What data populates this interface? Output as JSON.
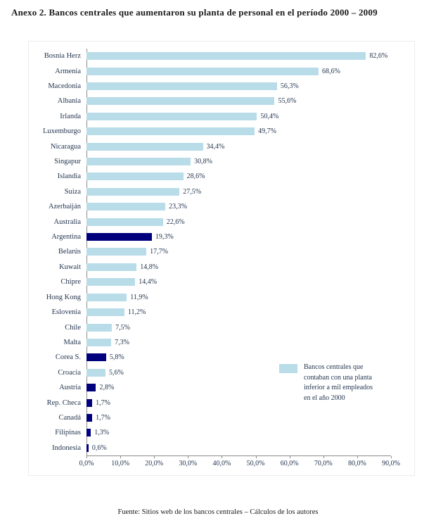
{
  "page": {
    "title": "Anexo 2. Bancos centrales que aumentaron su planta de personal en el período  2000 – 2009",
    "footer": "Fuente: Sitios web de los bancos centrales – Cálculos de los autores"
  },
  "legend": {
    "label": "Bancos centrales que contaban con una planta inferior a mil empleados en el año 2000"
  },
  "colors": {
    "light_bar": "#b9dce9",
    "dark_bar": "#00007d",
    "chart_text": "#24364f",
    "axis": "#8c8c8c"
  },
  "chart_data": {
    "type": "bar",
    "orientation": "horizontal",
    "title": "Anexo 2. Bancos centrales que aumentaron su planta de personal en el período 2000 – 2009",
    "categories": [
      "Bosnia Herz",
      "Armenia",
      "Macedonia",
      "Albania",
      "Irlanda",
      "Luxemburgo",
      "Nicaragua",
      "Singapur",
      "Islandia",
      "Suiza",
      "Azerbaiján",
      "Australia",
      "Argentina",
      "Belarús",
      "Kuwait",
      "Chipre",
      "Hong Kong",
      "Eslovenia",
      "Chile",
      "Malta",
      "Corea S.",
      "Croacia",
      "Austria",
      "Rep. Checa",
      "Canadá",
      "Filipinas",
      "Indonesia"
    ],
    "values": [
      82.6,
      68.6,
      56.3,
      55.6,
      50.4,
      49.7,
      34.4,
      30.8,
      28.6,
      27.5,
      23.3,
      22.6,
      19.3,
      17.7,
      14.8,
      14.4,
      11.9,
      11.2,
      7.5,
      7.3,
      5.8,
      5.6,
      2.8,
      1.7,
      1.7,
      1.3,
      0.6
    ],
    "value_labels": [
      "82,6%",
      "68,6%",
      "56,3%",
      "55,6%",
      "50,4%",
      "49,7%",
      "34,4%",
      "30,8%",
      "28,6%",
      "27,5%",
      "23,3%",
      "22,6%",
      "19,3%",
      "17,7%",
      "14,8%",
      "14,4%",
      "11,9%",
      "11,2%",
      "7,5%",
      "7,3%",
      "5,8%",
      "5,6%",
      "2,8%",
      "1,7%",
      "1,7%",
      "1,3%",
      "0,6%"
    ],
    "bar_styles": [
      "light",
      "light",
      "light",
      "light",
      "light",
      "light",
      "light",
      "light",
      "light",
      "light",
      "light",
      "light",
      "dark",
      "light",
      "light",
      "light",
      "light",
      "light",
      "light",
      "light",
      "dark",
      "light",
      "dark",
      "dark",
      "dark",
      "dark",
      "dark"
    ],
    "xlim": [
      0,
      90
    ],
    "x_tick_labels": [
      "0,0%",
      "10,0%",
      "20,0%",
      "30,0%",
      "40,0%",
      "50,0%",
      "60,0%",
      "70,0%",
      "80,0%",
      "90,0%"
    ],
    "grid": false,
    "legend_position": "inside-right",
    "legend_entries": [
      "Bancos centrales que contaban con una planta inferior a mil empleados en el año 2000"
    ]
  }
}
